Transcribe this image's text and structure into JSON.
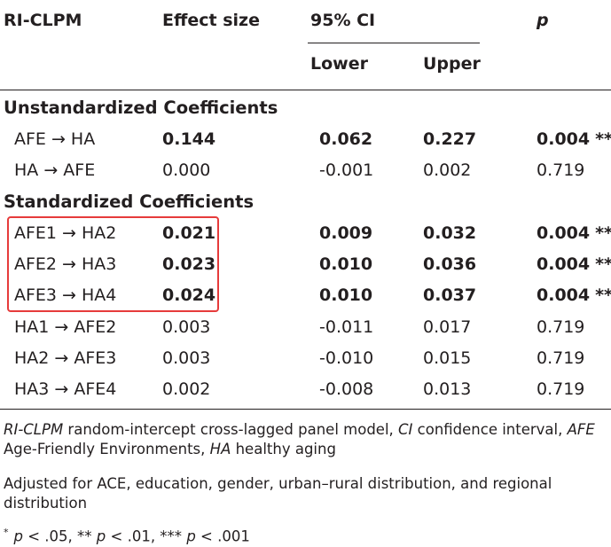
{
  "header": {
    "col_model": "RI-CLPM",
    "col_effect": "Effect size",
    "col_ci": "95% CI",
    "col_lower": "Lower",
    "col_upper": "Upper",
    "col_p": "p"
  },
  "sections": [
    {
      "title": "Unstandardized Coefficients",
      "rows": [
        {
          "path": "AFE → HA",
          "effect": "0.144",
          "lower": "0.062",
          "upper": "0.227",
          "p": "0.004",
          "stars": "**",
          "effect_bold": true,
          "ci_bold": true,
          "p_bold": true
        },
        {
          "path": "HA → AFE",
          "effect": "0.000",
          "lower": "-0.001",
          "upper": "0.002",
          "p": "0.719",
          "stars": "",
          "effect_bold": false,
          "ci_bold": false,
          "p_bold": false
        }
      ]
    },
    {
      "title": "Standardized Coefficients",
      "rows": [
        {
          "path": "AFE1 → HA2",
          "effect": "0.021",
          "lower": "0.009",
          "upper": "0.032",
          "p": "0.004",
          "stars": "**",
          "effect_bold": true,
          "ci_bold": true,
          "p_bold": true
        },
        {
          "path": "AFE2 → HA3",
          "effect": "0.023",
          "lower": "0.010",
          "upper": "0.036",
          "p": "0.004",
          "stars": "**",
          "effect_bold": true,
          "ci_bold": true,
          "p_bold": true
        },
        {
          "path": "AFE3 → HA4",
          "effect": "0.024",
          "lower": "0.010",
          "upper": "0.037",
          "p": "0.004",
          "stars": "**",
          "effect_bold": true,
          "ci_bold": true,
          "p_bold": true
        },
        {
          "path": "HA1 → AFE2",
          "effect": "0.003",
          "lower": "-0.011",
          "upper": "0.017",
          "p": "0.719",
          "stars": "",
          "effect_bold": false,
          "ci_bold": false,
          "p_bold": false
        },
        {
          "path": "HA2 → AFE3",
          "effect": "0.003",
          "lower": "-0.010",
          "upper": "0.015",
          "p": "0.719",
          "stars": "",
          "effect_bold": false,
          "ci_bold": false,
          "p_bold": false
        },
        {
          "path": "HA3 → AFE4",
          "effect": "0.002",
          "lower": "-0.008",
          "upper": "0.013",
          "p": "0.719",
          "stars": "",
          "effect_bold": false,
          "ci_bold": false,
          "p_bold": false
        }
      ]
    }
  ],
  "notes": {
    "abbrev": [
      {
        "text": "RI-CLPM",
        "italic": true
      },
      {
        "text": " random-intercept cross-lagged panel model, ",
        "italic": false
      },
      {
        "text": "CI",
        "italic": true
      },
      {
        "text": " confidence interval, ",
        "italic": false
      },
      {
        "text": "AFE",
        "italic": true
      },
      {
        "text": " Age-Friendly Environments, ",
        "italic": false
      },
      {
        "text": "HA",
        "italic": true
      },
      {
        "text": " healthy aging",
        "italic": false
      }
    ],
    "adjusted": "Adjusted for ACE, education, gender, urban–rural distribution, and regional distribution",
    "sig_star": "*",
    "sig_parts": [
      {
        "text": "p",
        "italic": true
      },
      {
        "text": " < .05, ** ",
        "italic": false
      },
      {
        "text": "p",
        "italic": true
      },
      {
        "text": " < .01, *** ",
        "italic": false
      },
      {
        "text": "p",
        "italic": true
      },
      {
        "text": " < .001",
        "italic": false
      }
    ]
  },
  "highlight_color": "#e63b3b"
}
